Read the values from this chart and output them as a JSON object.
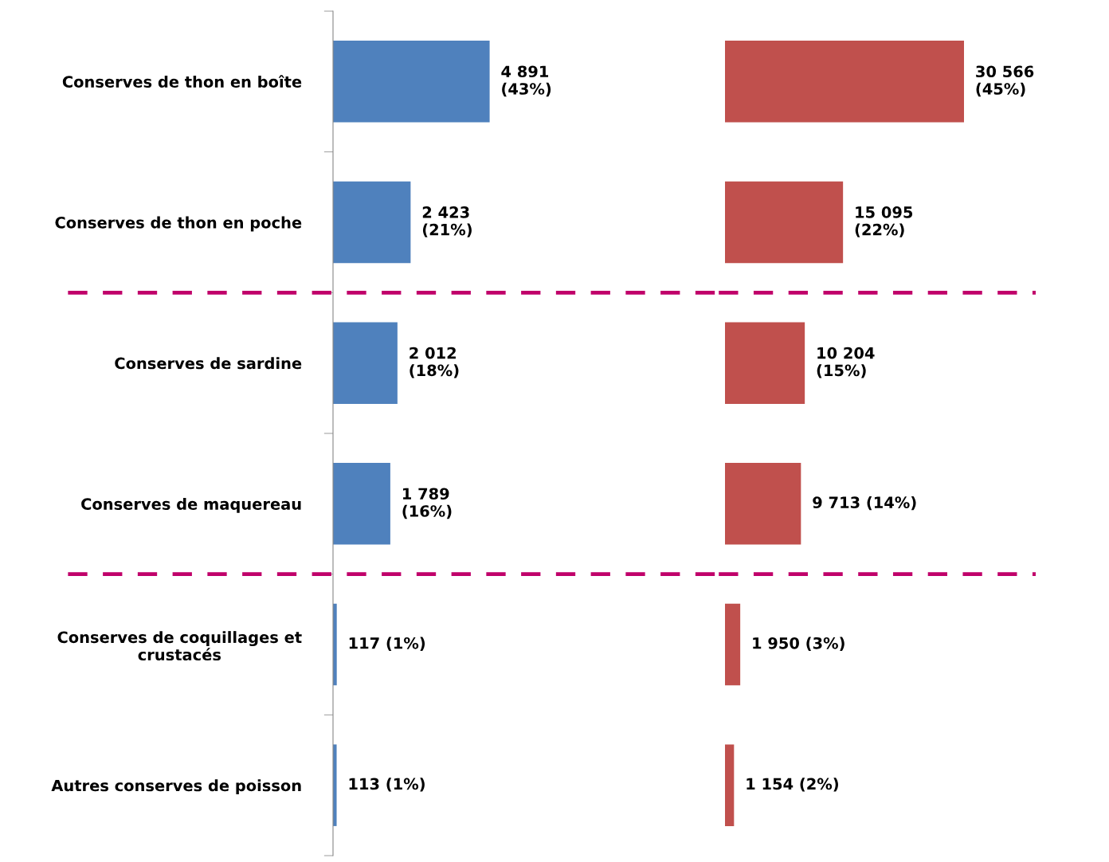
{
  "chart_data": [
    {
      "type": "bar",
      "orientation": "horizontal",
      "categories": [
        "Conserves de thon en boîte",
        "Conserves de thon en poche",
        "Conserves de sardine",
        "Conserves de maquereau",
        "Conserves de coquillages et\ncrustacés",
        "Autres conserves de poisson"
      ],
      "values": [
        4891,
        2423,
        2012,
        1789,
        117,
        113
      ],
      "color": "#4f81bd",
      "value_labels": [
        "4 891\n(43%)",
        "2 423\n(21%)",
        "2 012\n(18%)",
        "1 789\n(16%)",
        "117 (1%)",
        "113 (1%)"
      ],
      "tick_labels": "y",
      "grid": false,
      "legend": false
    },
    {
      "type": "bar",
      "orientation": "horizontal",
      "categories": [
        null,
        null,
        null,
        null,
        null,
        null
      ],
      "values": [
        30566,
        15095,
        10204,
        9713,
        1950,
        1154
      ],
      "color": "#c0504d",
      "value_labels": [
        "30 566\n(45%)",
        "15 095\n(22%)",
        "10 204\n(15%)",
        "9 713 (14%)",
        "1 950 (3%)",
        "1 154 (2%)"
      ],
      "tick_labels": false,
      "grid": false,
      "legend": false
    }
  ]
}
